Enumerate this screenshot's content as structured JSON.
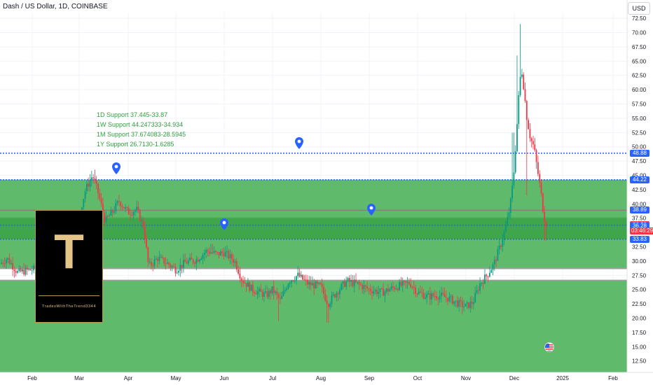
{
  "header": {
    "title": "Dash / US Dollar, 1D, COINBASE",
    "currency": "USD"
  },
  "support_notes": [
    "1D Support 37.445-33.87",
    "1W Support 44.247333-34.934",
    "1M Support 37.674083-28.5945",
    "1Y Support 26.7130-1.6285"
  ],
  "logo": {
    "letter": "T",
    "caption": "TradesWithTheTrend3344"
  },
  "price_badges": [
    {
      "label": "48.88",
      "price": 48.88,
      "color": "#2962ff"
    },
    {
      "label": "44.22",
      "price": 44.22,
      "color": "#2962ff"
    },
    {
      "label": "38.89",
      "price": 38.89,
      "color": "#2962ff"
    },
    {
      "label": "36.30",
      "price": 36.3,
      "color": "#f23645"
    },
    {
      "label": "36.28",
      "price": 36.28,
      "color": "#2962ff"
    },
    {
      "label": "33.83",
      "price": 33.83,
      "color": "#2962ff"
    }
  ],
  "countdown": "03:46:29",
  "icons": {
    "pins": "map-pin-icon",
    "flag": "us-flag-icon"
  },
  "chart_data": {
    "type": "candlestick",
    "title": "Dash / US Dollar, 1D, COINBASE",
    "xlabel": "",
    "ylabel": "",
    "ylim": [
      10.5,
      73.5
    ],
    "y_ticks": [
      "12.50",
      "15.00",
      "17.50",
      "20.00",
      "22.50",
      "25.00",
      "27.50",
      "30.00",
      "32.50",
      "35.00",
      "37.50",
      "40.00",
      "42.50",
      "45.00",
      "47.50",
      "50.00",
      "52.50",
      "55.00",
      "57.50",
      "60.00",
      "62.50",
      "65.00",
      "67.50",
      "70.00",
      "72.50"
    ],
    "x_ticks": [
      "Feb",
      "Mar",
      "Apr",
      "May",
      "Jun",
      "Jul",
      "Aug",
      "Sep",
      "Oct",
      "Nov",
      "Dec",
      "2025",
      "Feb"
    ],
    "zones": [
      {
        "from": 10.5,
        "to": 26.71,
        "color": "#5fba6b"
      },
      {
        "from": 28.59,
        "to": 44.25,
        "color": "#5fba6b"
      },
      {
        "from": 34.93,
        "to": 37.67,
        "color": "#4aae57"
      },
      {
        "from": 33.87,
        "to": 37.45,
        "color": "#3fa64c"
      }
    ],
    "lines": [
      {
        "price": 48.88,
        "style": "dotted"
      },
      {
        "price": 44.22,
        "style": "dotted"
      },
      {
        "price": 38.89,
        "style": "solid-gray"
      },
      {
        "price": 36.28,
        "style": "dotted"
      },
      {
        "price": 33.83,
        "style": "dotted"
      }
    ],
    "pins": [
      {
        "month": "Mar",
        "offset": 0.75,
        "price": 45.2
      },
      {
        "month": "Jun",
        "offset": 0.0,
        "price": 35.4
      },
      {
        "month": "Jul",
        "offset": 0.55,
        "price": 49.6
      },
      {
        "month": "Sep",
        "offset": 0.05,
        "price": 38.0
      }
    ],
    "key_prices": [
      {
        "point": "Feb",
        "close": 28.5
      },
      {
        "point": "Mar mid",
        "high": 45.9,
        "close": 42.0
      },
      {
        "point": "Apr",
        "close": 38.5
      },
      {
        "point": "May",
        "close": 28.5
      },
      {
        "point": "Jun mid",
        "close": 31.5
      },
      {
        "point": "Jul",
        "close": 25.0
      },
      {
        "point": "Aug",
        "low": 19.5,
        "close": 25.5
      },
      {
        "point": "Sep",
        "close": 25.0
      },
      {
        "point": "Oct",
        "close": 24.5
      },
      {
        "point": "Nov early",
        "close": 22.0
      },
      {
        "point": "Nov end",
        "close": 40.0
      },
      {
        "point": "Dec early",
        "high": 71.5,
        "close": 62.0
      },
      {
        "point": "Dec mid",
        "close": 48.0
      },
      {
        "point": "Dec end",
        "low": 33.6,
        "close": 36.3
      }
    ]
  }
}
